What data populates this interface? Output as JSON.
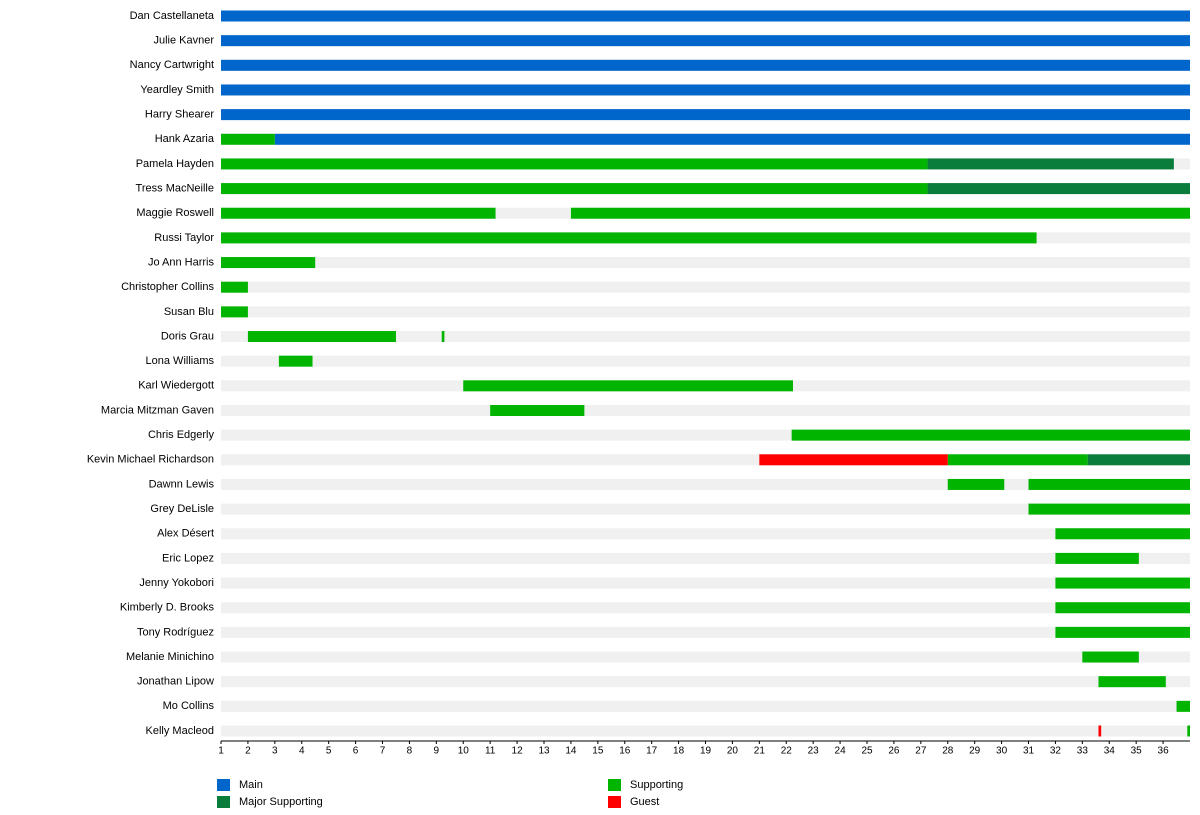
{
  "chart_data": {
    "type": "timeline",
    "categories": [
      "Dan Castellaneta",
      "Julie Kavner",
      "Nancy Cartwright",
      "Yeardley Smith",
      "Harry Shearer",
      "Hank Azaria",
      "Pamela Hayden",
      "Tress MacNeille",
      "Maggie Roswell",
      "Russi Taylor",
      "Jo Ann Harris",
      "Christopher Collins",
      "Susan Blu",
      "Doris Grau",
      "Lona Williams",
      "Karl Wiedergott",
      "Marcia Mitzman Gaven",
      "Chris Edgerly",
      "Kevin Michael Richardson",
      "Dawnn Lewis",
      "Grey DeLisle",
      "Alex Désert",
      "Eric Lopez",
      "Jenny Yokobori",
      "Kimberly D. Brooks",
      "Tony Rodríguez",
      "Melanie Minichino",
      "Jonathan Lipow",
      "Mo Collins",
      "Kelly Macleod"
    ],
    "series": [
      {
        "name": "Main",
        "color": "#0066cc",
        "values": [
          [
            [
              1,
              37
            ]
          ],
          [
            [
              1,
              37
            ]
          ],
          [
            [
              1,
              37
            ]
          ],
          [
            [
              1,
              37
            ]
          ],
          [
            [
              1,
              37
            ]
          ],
          [
            [
              3,
              37
            ]
          ],
          [],
          [],
          [],
          [],
          [],
          [],
          [],
          [],
          [],
          [],
          [],
          [],
          [],
          [],
          [],
          [],
          [],
          [],
          [],
          [],
          [],
          [],
          [],
          []
        ]
      },
      {
        "name": "Supporting",
        "color": "#00b400",
        "values": [
          [],
          [],
          [],
          [],
          [],
          [
            [
              1,
              3
            ]
          ],
          [
            [
              1,
              27.25
            ]
          ],
          [
            [
              1,
              27.25
            ]
          ],
          [
            [
              1,
              11.2
            ],
            [
              14,
              37
            ]
          ],
          [
            [
              1,
              31.3
            ]
          ],
          [
            [
              1,
              4.5
            ]
          ],
          [
            [
              1,
              2
            ]
          ],
          [
            [
              1,
              2
            ]
          ],
          [
            [
              2,
              7.5
            ],
            [
              9.2,
              9.3
            ]
          ],
          [
            [
              3.15,
              4.4
            ]
          ],
          [
            [
              10,
              22.25
            ]
          ],
          [
            [
              11,
              14.5
            ]
          ],
          [
            [
              22.2,
              37
            ]
          ],
          [
            [
              28,
              33.2
            ]
          ],
          [
            [
              28,
              30.1
            ],
            [
              31,
              37
            ]
          ],
          [
            [
              31,
              37
            ]
          ],
          [
            [
              32,
              37
            ]
          ],
          [
            [
              32,
              35.1
            ]
          ],
          [
            [
              32,
              37
            ]
          ],
          [
            [
              32,
              37
            ]
          ],
          [
            [
              32,
              37
            ]
          ],
          [
            [
              33,
              35.1
            ]
          ],
          [
            [
              33.6,
              36.1
            ]
          ],
          [
            [
              36.5,
              37
            ]
          ],
          [
            [
              36.9,
              37
            ]
          ]
        ]
      },
      {
        "name": "Major Supporting",
        "color": "#0a7d3c",
        "values": [
          [],
          [],
          [],
          [],
          [],
          [],
          [
            [
              27.25,
              36.4
            ]
          ],
          [
            [
              27.25,
              37
            ]
          ],
          [],
          [],
          [],
          [],
          [],
          [],
          [],
          [],
          [],
          [],
          [
            [
              33.2,
              37
            ]
          ],
          [],
          [],
          [],
          [],
          [],
          [],
          [],
          [],
          [],
          [],
          []
        ]
      },
      {
        "name": "Guest",
        "color": "#ff0000",
        "values": [
          [],
          [],
          [],
          [],
          [],
          [],
          [],
          [],
          [],
          [],
          [],
          [],
          [],
          [],
          [],
          [],
          [],
          [],
          [
            [
              21,
              28
            ]
          ],
          [],
          [],
          [],
          [],
          [],
          [],
          [],
          [],
          [],
          [],
          [
            [
              33.6,
              33.7
            ]
          ]
        ]
      }
    ],
    "xlim": [
      1,
      37
    ],
    "xticks": [
      1,
      2,
      3,
      4,
      5,
      6,
      7,
      8,
      9,
      10,
      11,
      12,
      13,
      14,
      15,
      16,
      17,
      18,
      19,
      20,
      21,
      22,
      23,
      24,
      25,
      26,
      27,
      28,
      29,
      30,
      31,
      32,
      33,
      34,
      35,
      36
    ]
  }
}
